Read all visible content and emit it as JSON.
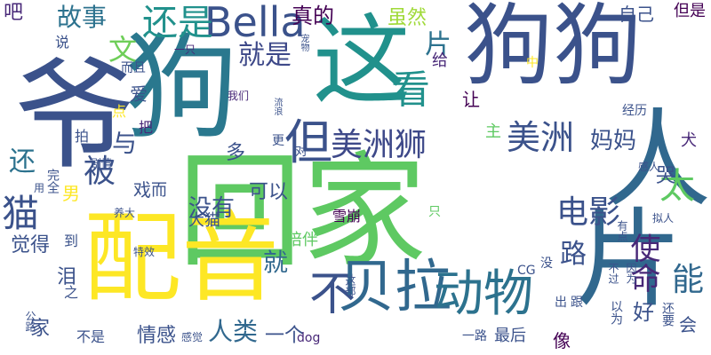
{
  "cloud": {
    "words": [
      {
        "text": "狗狗",
        "color": "#3b528b",
        "weight": 10,
        "vertical": false
      },
      {
        "text": "这",
        "color": "#21918c",
        "weight": 10,
        "vertical": false
      },
      {
        "text": "狗",
        "color": "#2a788e",
        "weight": 10,
        "vertical": false
      },
      {
        "text": "回家",
        "color": "#5ec962",
        "weight": 10,
        "vertical": false
      },
      {
        "text": "配音",
        "color": "#fde725",
        "weight": 9,
        "vertical": false
      },
      {
        "text": "人",
        "color": "#31688e",
        "weight": 10,
        "vertical": true
      },
      {
        "text": "片",
        "color": "#31688e",
        "weight": 10,
        "vertical": true
      },
      {
        "text": "爷",
        "color": "#3b528b",
        "weight": 10,
        "vertical": true
      },
      {
        "text": "Bella",
        "color": "#3b528b",
        "weight": 6,
        "vertical": false
      },
      {
        "text": "还是",
        "color": "#21918c",
        "weight": 5,
        "vertical": false
      },
      {
        "text": "故事",
        "color": "#2c728e",
        "weight": 3,
        "vertical": false
      },
      {
        "text": "吧",
        "color": "#482878",
        "weight": 2,
        "vertical": false
      },
      {
        "text": "真的",
        "color": "#440154",
        "weight": 2,
        "vertical": false
      },
      {
        "text": "虽然",
        "color": "#a0da39",
        "weight": 2,
        "vertical": false
      },
      {
        "text": "自己",
        "color": "#3b528b",
        "weight": 2,
        "vertical": false
      },
      {
        "text": "但是",
        "color": "#440154",
        "weight": 2,
        "vertical": false
      },
      {
        "text": "文",
        "color": "#6ece58",
        "weight": 3,
        "vertical": false
      },
      {
        "text": "就是",
        "color": "#3e4989",
        "weight": 3,
        "vertical": false
      },
      {
        "text": "片",
        "color": "#2c728e",
        "weight": 3,
        "vertical": false
      },
      {
        "text": "看",
        "color": "#21918c",
        "weight": 5,
        "vertical": false
      },
      {
        "text": "美洲狮",
        "color": "#3e4989",
        "weight": 5,
        "vertical": false
      },
      {
        "text": "美洲",
        "color": "#3b528b",
        "weight": 5,
        "vertical": false
      },
      {
        "text": "但",
        "color": "#3b528b",
        "weight": 6,
        "vertical": false
      },
      {
        "text": "被",
        "color": "#3b528b",
        "weight": 5,
        "vertical": false
      },
      {
        "text": "太",
        "color": "#5ec962",
        "weight": 5,
        "vertical": false
      },
      {
        "text": "电影",
        "color": "#3b528b",
        "weight": 4,
        "vertical": false
      },
      {
        "text": "猫",
        "color": "#3b528b",
        "weight": 5,
        "vertical": false
      },
      {
        "text": "还",
        "color": "#2c728e",
        "weight": 4,
        "vertical": false
      },
      {
        "text": "妈妈",
        "color": "#3b528b",
        "weight": 3,
        "vertical": false
      },
      {
        "text": "不",
        "color": "#3b528b",
        "weight": 5,
        "vertical": false
      },
      {
        "text": "贝拉",
        "color": "#31688e",
        "weight": 6,
        "vertical": false
      },
      {
        "text": "动物",
        "color": "#2c728e",
        "weight": 6,
        "vertical": false
      },
      {
        "text": "使命",
        "color": "#482878",
        "weight": 4,
        "vertical": true
      },
      {
        "text": "能",
        "color": "#31688e",
        "weight": 3,
        "vertical": false
      },
      {
        "text": "路",
        "color": "#3b528b",
        "weight": 3,
        "vertical": false
      },
      {
        "text": "就",
        "color": "#31688e",
        "weight": 3,
        "vertical": false
      },
      {
        "text": "没有",
        "color": "#3b528b",
        "weight": 3,
        "vertical": false
      },
      {
        "text": "人类",
        "color": "#31688e",
        "weight": 3,
        "vertical": false
      },
      {
        "text": "情感",
        "color": "#3b528b",
        "weight": 2,
        "vertical": false
      },
      {
        "text": "一个",
        "color": "#3b528b",
        "weight": 2,
        "vertical": false
      },
      {
        "text": "觉得",
        "color": "#3b528b",
        "weight": 2,
        "vertical": false
      },
      {
        "text": "家",
        "color": "#3b528b",
        "weight": 2,
        "vertical": false
      },
      {
        "text": "不是",
        "color": "#3b528b",
        "weight": 1,
        "vertical": false
      },
      {
        "text": "dog",
        "color": "#482878",
        "weight": 1,
        "vertical": false
      },
      {
        "text": "最后",
        "color": "#3b528b",
        "weight": 1,
        "vertical": false
      },
      {
        "text": "像",
        "color": "#440154",
        "weight": 2,
        "vertical": false
      },
      {
        "text": "会",
        "color": "#3b528b",
        "weight": 2,
        "vertical": false
      },
      {
        "text": "好",
        "color": "#3b528b",
        "weight": 2,
        "vertical": false
      },
      {
        "text": "犬",
        "color": "#482878",
        "weight": 2,
        "vertical": false
      },
      {
        "text": "哭",
        "color": "#3b528b",
        "weight": 2,
        "vertical": false
      },
      {
        "text": "我们",
        "color": "#482878",
        "weight": 1,
        "vertical": false
      },
      {
        "text": "爱",
        "color": "#3b528b",
        "weight": 2,
        "vertical": false
      },
      {
        "text": "给",
        "color": "#482878",
        "weight": 2,
        "vertical": false
      },
      {
        "text": "让",
        "color": "#440154",
        "weight": 2,
        "vertical": false
      },
      {
        "text": "主",
        "color": "#5ec962",
        "weight": 2,
        "vertical": false
      },
      {
        "text": "与",
        "color": "#3b528b",
        "weight": 2,
        "vertical": false
      },
      {
        "text": "多",
        "color": "#3b528b",
        "weight": 2,
        "vertical": false
      },
      {
        "text": "可以",
        "color": "#3b528b",
        "weight": 2,
        "vertical": false
      },
      {
        "text": "陪伴",
        "color": "#5ec962",
        "weight": 2,
        "vertical": false
      },
      {
        "text": "大猫",
        "color": "#3b528b",
        "weight": 2,
        "vertical": false
      },
      {
        "text": "雪崩",
        "color": "#440154",
        "weight": 1,
        "vertical": false
      },
      {
        "text": "CG",
        "color": "#3b528b",
        "weight": 1,
        "vertical": false
      },
      {
        "text": "只",
        "color": "#5ec962",
        "weight": 1,
        "vertical": false
      },
      {
        "text": "一路",
        "color": "#3b528b",
        "weight": 1,
        "vertical": false
      },
      {
        "text": "男",
        "color": "#fde725",
        "weight": 2,
        "vertical": false
      },
      {
        "text": "戏",
        "color": "#3b528b",
        "weight": 2,
        "vertical": false
      },
      {
        "text": "而",
        "color": "#3b528b",
        "weight": 2,
        "vertical": false
      },
      {
        "text": "对",
        "color": "#3b528b",
        "weight": 1,
        "vertical": false
      },
      {
        "text": "更",
        "color": "#3b528b",
        "weight": 1,
        "vertical": false
      },
      {
        "text": "点",
        "color": "#fde725",
        "weight": 1,
        "vertical": false
      },
      {
        "text": "把",
        "color": "#482878",
        "weight": 1,
        "vertical": false
      },
      {
        "text": "拍",
        "color": "#3b528b",
        "weight": 1,
        "vertical": false
      },
      {
        "text": "泪",
        "color": "#3b528b",
        "weight": 2,
        "vertical": false
      },
      {
        "text": "到",
        "color": "#3b528b",
        "weight": 1,
        "vertical": false
      },
      {
        "text": "之",
        "color": "#3b528b",
        "weight": 1,
        "vertical": false
      },
      {
        "text": "说",
        "color": "#3b528b",
        "weight": 1,
        "vertical": false
      },
      {
        "text": "而且",
        "color": "#3b528b",
        "weight": 1,
        "vertical": false
      },
      {
        "text": "一只",
        "color": "#482878",
        "weight": 1,
        "vertical": false
      },
      {
        "text": "养大",
        "color": "#3b528b",
        "weight": 1,
        "vertical": false
      },
      {
        "text": "特效",
        "color": "#3b528b",
        "weight": 1,
        "vertical": false
      },
      {
        "text": "感人",
        "color": "#3b528b",
        "weight": 1,
        "vertical": false
      },
      {
        "text": "拟人",
        "color": "#3b528b",
        "weight": 1,
        "vertical": false
      },
      {
        "text": "经历",
        "color": "#3b528b",
        "weight": 1,
        "vertical": false
      },
      {
        "text": "剧情",
        "color": "#3b528b",
        "weight": 1,
        "vertical": false
      },
      {
        "text": "感觉",
        "color": "#3b528b",
        "weight": 1,
        "vertical": false
      },
      {
        "text": "中",
        "color": "#fde725",
        "weight": 1,
        "vertical": false
      },
      {
        "text": "出",
        "color": "#3b528b",
        "weight": 1,
        "vertical": false
      },
      {
        "text": "跟",
        "color": "#3b528b",
        "weight": 1,
        "vertical": false
      },
      {
        "text": "没",
        "color": "#3b528b",
        "weight": 1,
        "vertical": false
      },
      {
        "text": "完全",
        "color": "#3b528b",
        "weight": 1,
        "vertical": true
      },
      {
        "text": "用",
        "color": "#3b528b",
        "weight": 1,
        "vertical": false
      },
      {
        "text": "宠物",
        "color": "#3b528b",
        "weight": 1,
        "vertical": true
      },
      {
        "text": "流浪",
        "color": "#3b528b",
        "weight": 1,
        "vertical": true
      },
      {
        "text": "公路",
        "color": "#3b528b",
        "weight": 1,
        "vertical": true
      },
      {
        "text": "这部",
        "color": "#3b528b",
        "weight": 1,
        "vertical": true
      },
      {
        "text": "以为",
        "color": "#3b528b",
        "weight": 1,
        "vertical": true
      },
      {
        "text": "还要",
        "color": "#3b528b",
        "weight": 1,
        "vertical": true
      },
      {
        "text": "不过",
        "color": "#3b528b",
        "weight": 1,
        "vertical": true
      },
      {
        "text": "因为",
        "color": "#3b528b",
        "weight": 1,
        "vertical": true
      },
      {
        "text": "有点",
        "color": "#3b528b",
        "weight": 1,
        "vertical": true
      }
    ]
  }
}
